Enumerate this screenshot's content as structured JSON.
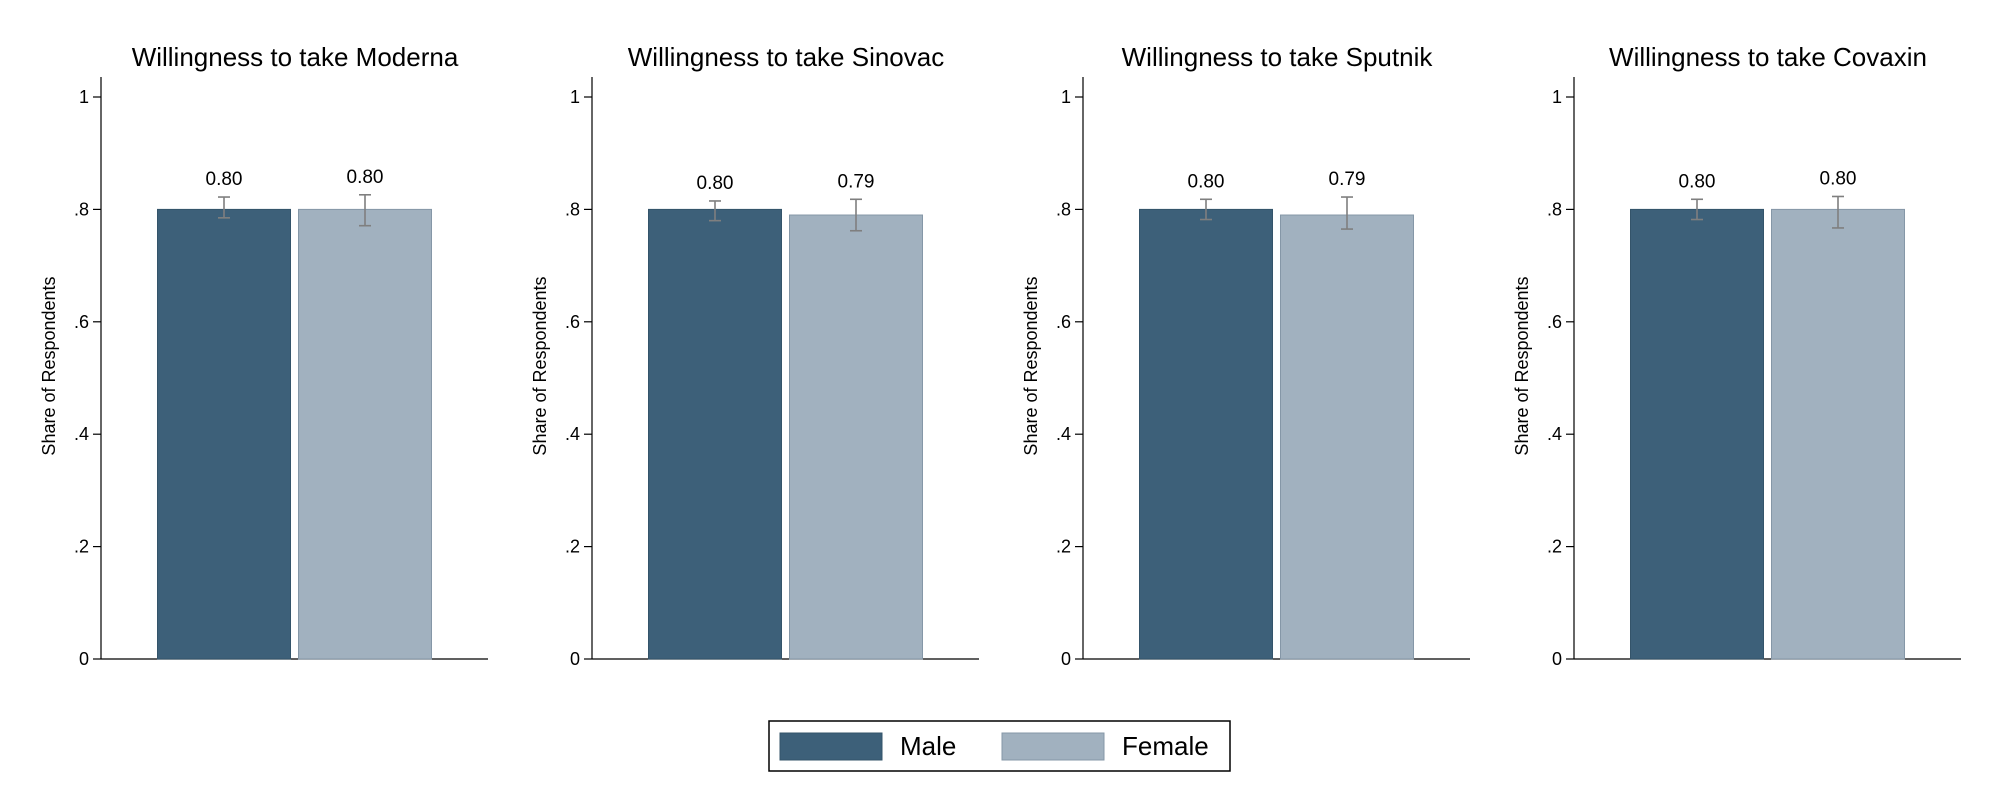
{
  "chart_data": [
    {
      "type": "bar",
      "title": "Willingness to take Moderna",
      "ylabel": "Share of Respondents",
      "ylim": [
        0,
        1
      ],
      "yticks": [
        0,
        0.2,
        0.4,
        0.6,
        0.8,
        1
      ],
      "ytick_labels": [
        "0",
        ".2",
        ".4",
        ".6",
        ".8",
        "1"
      ],
      "series": [
        {
          "name": "Male",
          "value": 0.8,
          "label": "0.80",
          "ci": [
            0.785,
            0.822
          ]
        },
        {
          "name": "Female",
          "value": 0.8,
          "label": "0.80",
          "ci": [
            0.771,
            0.826
          ]
        }
      ]
    },
    {
      "type": "bar",
      "title": "Willingness to take Sinovac",
      "ylabel": "Share of Respondents",
      "ylim": [
        0,
        1
      ],
      "yticks": [
        0,
        0.2,
        0.4,
        0.6,
        0.8,
        1
      ],
      "ytick_labels": [
        "0",
        ".2",
        ".4",
        ".6",
        ".8",
        "1"
      ],
      "series": [
        {
          "name": "Male",
          "value": 0.8,
          "label": "0.80",
          "ci": [
            0.78,
            0.815
          ]
        },
        {
          "name": "Female",
          "value": 0.79,
          "label": "0.79",
          "ci": [
            0.762,
            0.818
          ]
        }
      ]
    },
    {
      "type": "bar",
      "title": "Willingness to take Sputnik",
      "ylabel": "Share of Respondents",
      "ylim": [
        0,
        1
      ],
      "yticks": [
        0,
        0.2,
        0.4,
        0.6,
        0.8,
        1
      ],
      "ytick_labels": [
        "0",
        ".2",
        ".4",
        ".6",
        ".8",
        "1"
      ],
      "series": [
        {
          "name": "Male",
          "value": 0.8,
          "label": "0.80",
          "ci": [
            0.782,
            0.818
          ]
        },
        {
          "name": "Female",
          "value": 0.79,
          "label": "0.79",
          "ci": [
            0.765,
            0.822
          ]
        }
      ]
    },
    {
      "type": "bar",
      "title": "Willingness to take Covaxin",
      "ylabel": "Share of Respondents",
      "ylim": [
        0,
        1
      ],
      "yticks": [
        0,
        0.2,
        0.4,
        0.6,
        0.8,
        1
      ],
      "ytick_labels": [
        "0",
        ".2",
        ".4",
        ".6",
        ".8",
        "1"
      ],
      "series": [
        {
          "name": "Male",
          "value": 0.8,
          "label": "0.80",
          "ci": [
            0.782,
            0.818
          ]
        },
        {
          "name": "Female",
          "value": 0.8,
          "label": "0.80",
          "ci": [
            0.767,
            0.823
          ]
        }
      ]
    }
  ],
  "legend": {
    "items": [
      {
        "name": "Male",
        "color": "#3d6079"
      },
      {
        "name": "Female",
        "color": "#a1b1bf"
      }
    ],
    "placement": "bottom-center"
  },
  "colors": {
    "male_bar": "#3d6079",
    "female_bar": "#a1b1bf",
    "error_bar": "#7f7f7f",
    "axis": "#000000"
  }
}
